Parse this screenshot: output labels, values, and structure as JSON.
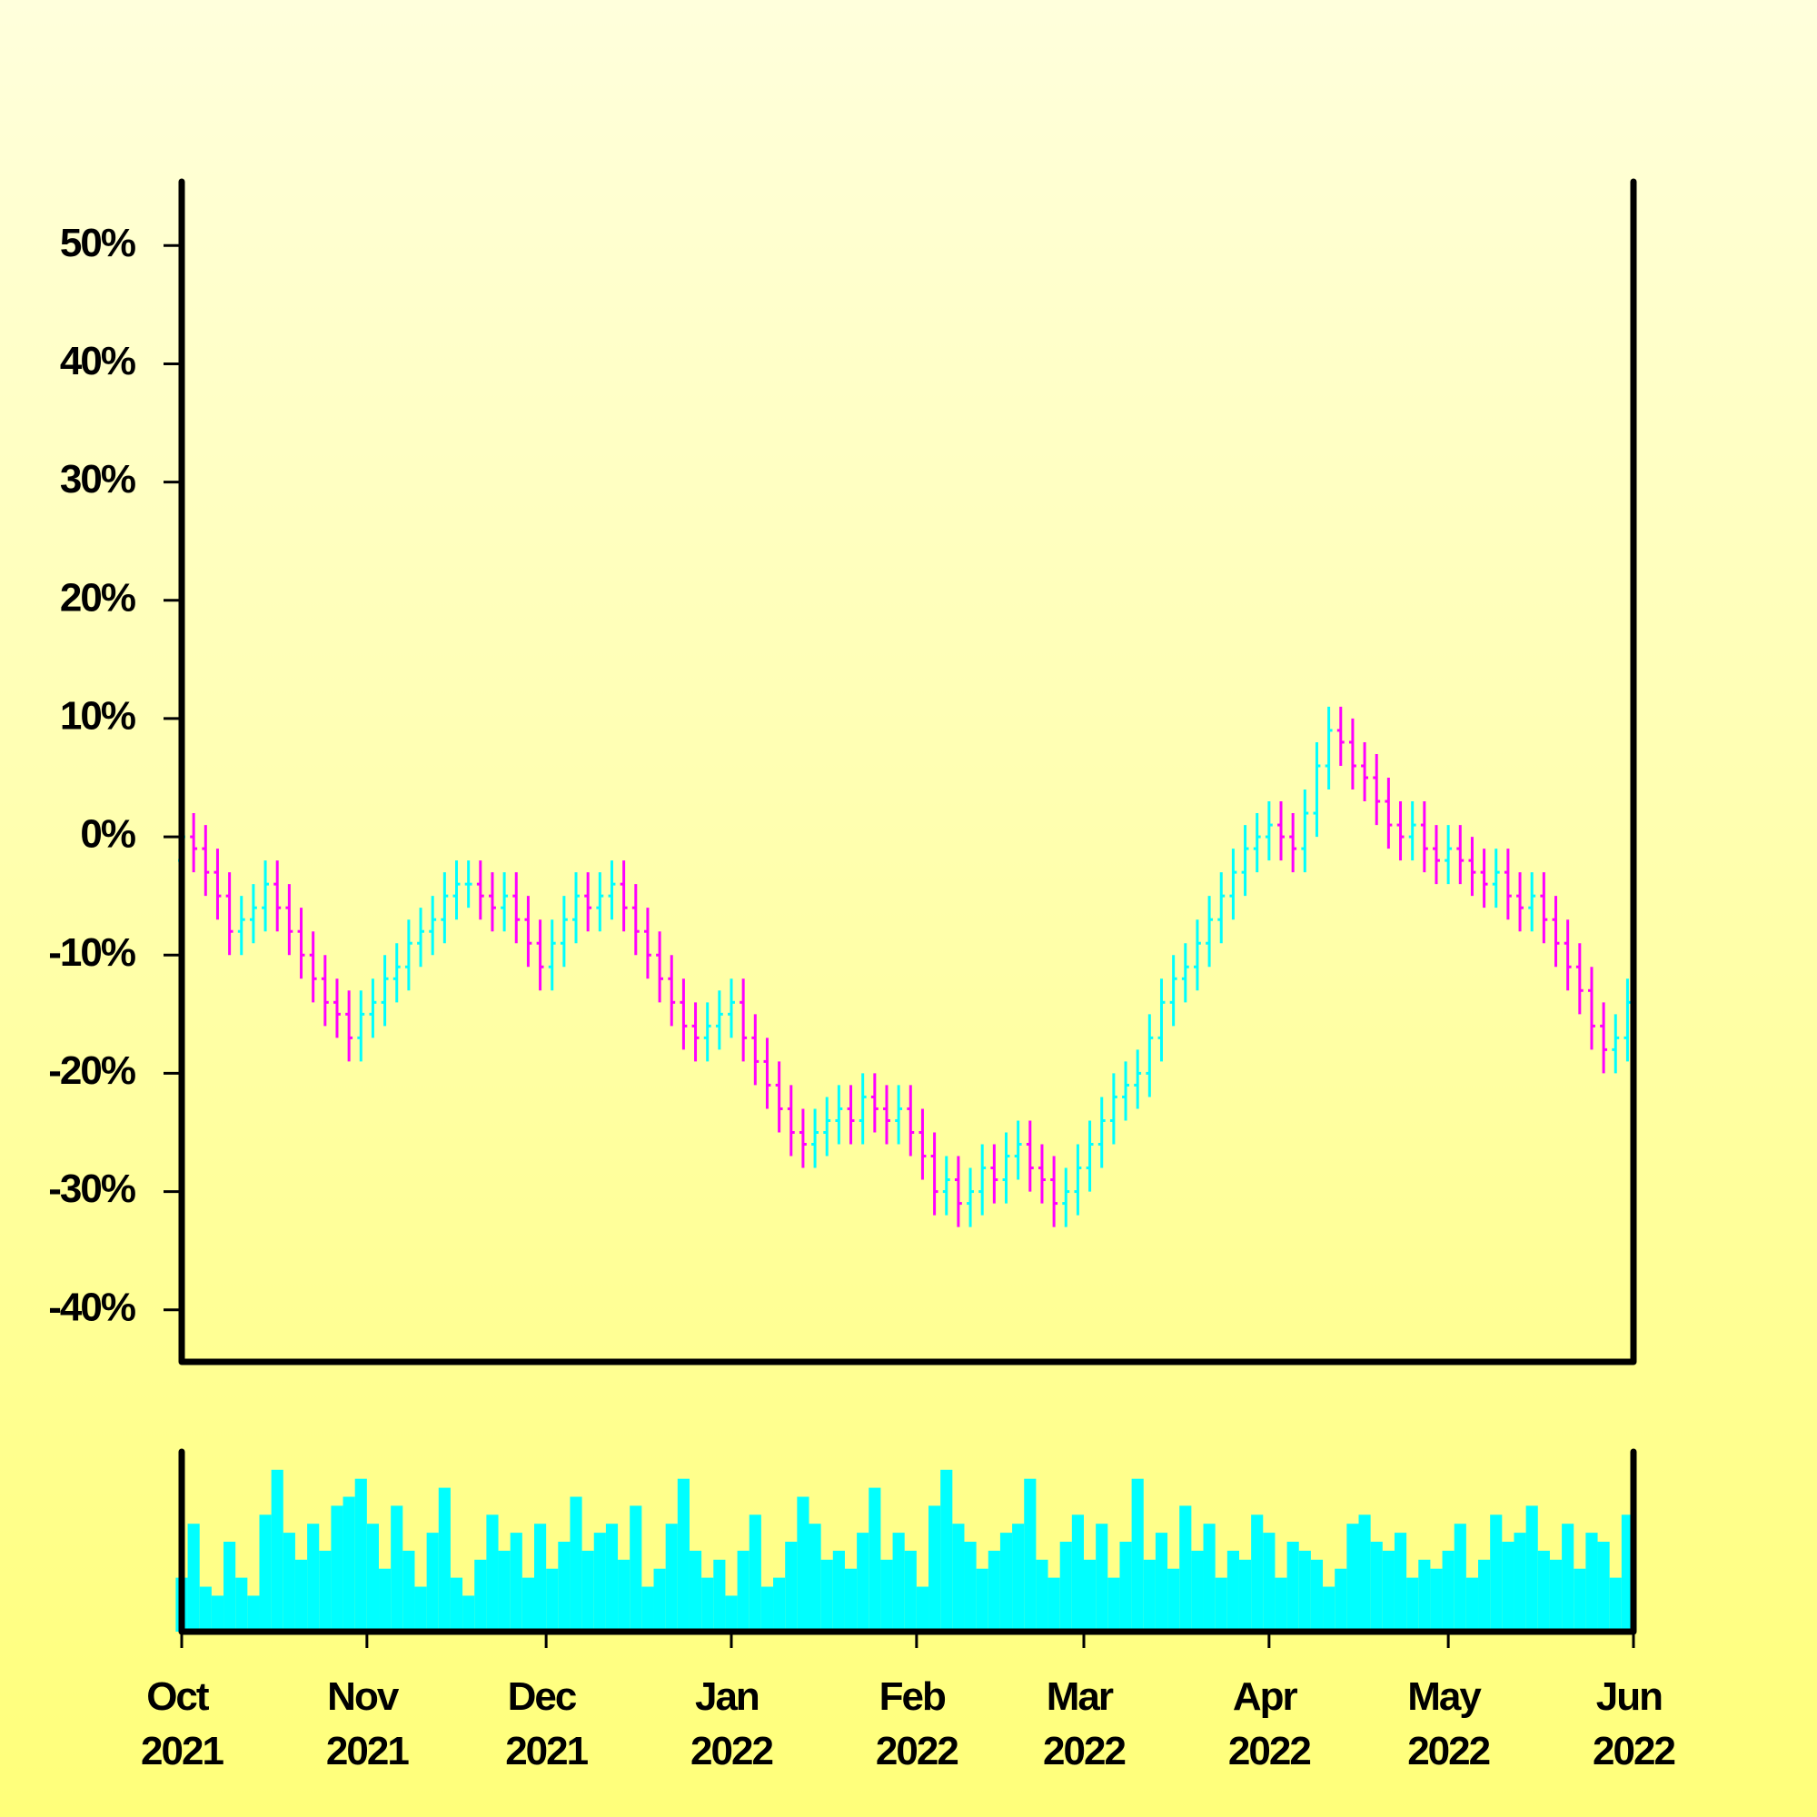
{
  "chart_data": {
    "type": "ohlc",
    "up_color": "#00ffff",
    "down_color": "#ff00ff",
    "x": [
      0,
      2,
      4,
      6,
      8,
      10,
      12,
      14,
      16,
      18,
      20,
      22,
      24,
      26,
      28,
      30,
      32,
      34,
      36,
      38,
      40,
      42,
      44,
      46,
      48,
      50,
      52,
      54,
      56,
      58,
      60,
      62,
      64,
      66,
      68,
      70,
      72,
      74,
      76,
      78,
      80,
      82,
      84,
      86,
      88,
      90,
      92,
      94,
      96,
      98,
      100,
      102,
      104,
      106,
      108,
      110,
      112,
      114,
      116,
      118,
      120,
      122,
      124,
      126,
      128,
      130,
      132,
      134,
      136,
      138,
      140,
      142,
      144,
      146,
      148,
      150,
      152,
      154,
      156,
      158,
      160,
      162,
      164,
      166,
      168,
      170,
      172,
      174,
      176,
      178,
      180,
      182,
      184,
      186,
      188,
      190,
      192,
      194,
      196,
      198,
      200,
      202,
      204,
      206,
      208,
      210,
      212,
      214,
      216,
      218,
      220,
      222,
      224,
      226,
      228,
      230,
      232,
      234,
      236,
      238,
      240,
      242
    ],
    "open": [
      -2,
      0,
      -1,
      -3,
      -5,
      -8,
      -7,
      -6,
      -4,
      -6,
      -8,
      -10,
      -12,
      -14,
      -15,
      -17,
      -15,
      -14,
      -12,
      -11,
      -9,
      -8,
      -7,
      -5,
      -4,
      -4,
      -5,
      -6,
      -5,
      -7,
      -9,
      -11,
      -9,
      -7,
      -5,
      -6,
      -5,
      -4,
      -6,
      -8,
      -10,
      -12,
      -14,
      -16,
      -17,
      -16,
      -15,
      -14,
      -17,
      -19,
      -21,
      -23,
      -25,
      -26,
      -25,
      -24,
      -23,
      -24,
      -22,
      -23,
      -24,
      -23,
      -25,
      -27,
      -30,
      -29,
      -31,
      -30,
      -28,
      -29,
      -27,
      -26,
      -28,
      -29,
      -31,
      -30,
      -28,
      -26,
      -24,
      -22,
      -21,
      -20,
      -17,
      -14,
      -12,
      -11,
      -9,
      -7,
      -5,
      -3,
      -1,
      0,
      1,
      0,
      -1,
      2,
      6,
      9,
      8,
      6,
      5,
      3,
      1,
      0,
      1,
      -1,
      -2,
      -1,
      -2,
      -3,
      -4,
      -3,
      -5,
      -6,
      -5,
      -7,
      -9,
      -11,
      -13,
      -16,
      -18,
      -17
    ],
    "high": [
      2,
      2,
      1,
      -1,
      -3,
      -5,
      -4,
      -2,
      -2,
      -4,
      -6,
      -8,
      -10,
      -12,
      -13,
      -13,
      -12,
      -10,
      -9,
      -7,
      -6,
      -5,
      -3,
      -2,
      -2,
      -2,
      -3,
      -3,
      -3,
      -5,
      -7,
      -7,
      -5,
      -3,
      -3,
      -3,
      -2,
      -2,
      -4,
      -6,
      -8,
      -10,
      -12,
      -14,
      -14,
      -13,
      -12,
      -12,
      -15,
      -17,
      -19,
      -21,
      -23,
      -23,
      -22,
      -21,
      -21,
      -20,
      -20,
      -21,
      -21,
      -21,
      -23,
      -25,
      -27,
      -27,
      -28,
      -26,
      -26,
      -25,
      -24,
      -24,
      -26,
      -27,
      -28,
      -26,
      -24,
      -22,
      -20,
      -19,
      -18,
      -15,
      -12,
      -10,
      -9,
      -7,
      -5,
      -3,
      -1,
      1,
      2,
      3,
      3,
      2,
      4,
      8,
      11,
      11,
      10,
      8,
      7,
      5,
      3,
      3,
      3,
      1,
      1,
      1,
      0,
      -1,
      -1,
      -1,
      -3,
      -3,
      -3,
      -5,
      -7,
      -9,
      -11,
      -14,
      -15,
      -12
    ],
    "low": [
      -4,
      -3,
      -5,
      -7,
      -10,
      -10,
      -9,
      -8,
      -8,
      -10,
      -12,
      -14,
      -16,
      -17,
      -19,
      -19,
      -17,
      -16,
      -14,
      -13,
      -11,
      -10,
      -9,
      -7,
      -6,
      -7,
      -8,
      -8,
      -9,
      -11,
      -13,
      -13,
      -11,
      -9,
      -8,
      -8,
      -7,
      -8,
      -10,
      -12,
      -14,
      -16,
      -18,
      -19,
      -19,
      -18,
      -17,
      -19,
      -21,
      -23,
      -25,
      -27,
      -28,
      -28,
      -27,
      -26,
      -26,
      -26,
      -25,
      -26,
      -26,
      -27,
      -29,
      -32,
      -32,
      -33,
      -33,
      -32,
      -31,
      -31,
      -29,
      -30,
      -31,
      -33,
      -33,
      -32,
      -30,
      -28,
      -26,
      -24,
      -23,
      -22,
      -19,
      -16,
      -14,
      -13,
      -11,
      -9,
      -7,
      -5,
      -3,
      -2,
      -2,
      -3,
      -3,
      0,
      4,
      6,
      4,
      3,
      1,
      -1,
      -2,
      -2,
      -3,
      -4,
      -4,
      -4,
      -5,
      -6,
      -6,
      -7,
      -8,
      -8,
      -9,
      -11,
      -13,
      -15,
      -18,
      -20,
      -20,
      -19
    ],
    "close": [
      0,
      -1,
      -3,
      -5,
      -8,
      -7,
      -6,
      -4,
      -6,
      -8,
      -10,
      -12,
      -14,
      -15,
      -17,
      -15,
      -14,
      -12,
      -11,
      -9,
      -8,
      -7,
      -5,
      -4,
      -4,
      -5,
      -6,
      -5,
      -7,
      -9,
      -11,
      -9,
      -7,
      -5,
      -6,
      -5,
      -4,
      -6,
      -8,
      -10,
      -12,
      -14,
      -16,
      -17,
      -16,
      -15,
      -14,
      -17,
      -19,
      -21,
      -23,
      -25,
      -26,
      -25,
      -24,
      -23,
      -24,
      -22,
      -23,
      -24,
      -23,
      -25,
      -27,
      -30,
      -29,
      -31,
      -30,
      -28,
      -29,
      -27,
      -26,
      -28,
      -29,
      -31,
      -30,
      -28,
      -26,
      -24,
      -22,
      -21,
      -20,
      -17,
      -14,
      -12,
      -11,
      -9,
      -7,
      -5,
      -3,
      -1,
      0,
      1,
      0,
      -1,
      2,
      6,
      9,
      8,
      6,
      5,
      3,
      1,
      0,
      1,
      -1,
      -2,
      -1,
      -2,
      -3,
      -4,
      -3,
      -5,
      -6,
      -5,
      -7,
      -9,
      -11,
      -13,
      -16,
      -18,
      -17,
      -14
    ],
    "volume": [
      30,
      60,
      25,
      20,
      50,
      30,
      20,
      65,
      90,
      55,
      40,
      60,
      45,
      70,
      75,
      85,
      60,
      35,
      70,
      45,
      25,
      55,
      80,
      30,
      20,
      40,
      65,
      45,
      55,
      30,
      60,
      35,
      50,
      75,
      45,
      55,
      60,
      40,
      70,
      25,
      35,
      60,
      85,
      45,
      30,
      40,
      20,
      45,
      65,
      25,
      30,
      50,
      75,
      60,
      40,
      45,
      35,
      55,
      80,
      40,
      55,
      45,
      25,
      70,
      90,
      60,
      50,
      35,
      45,
      55,
      60,
      85,
      40,
      30,
      50,
      65,
      40,
      60,
      30,
      50,
      85,
      40,
      55,
      35,
      70,
      45,
      60,
      30,
      45,
      40,
      65,
      55,
      30,
      50,
      45,
      40,
      25,
      35,
      60,
      65,
      50,
      45,
      55,
      30,
      40,
      35,
      45,
      60,
      30,
      40,
      65,
      50,
      55,
      70,
      45,
      40,
      60,
      35,
      55,
      50,
      30,
      65
    ],
    "volume_color": "#00ffff",
    "volume_ylim": [
      0,
      100
    ],
    "xlim": [
      0,
      243
    ],
    "ylim": [
      -44.4,
      55.4
    ],
    "xticks": [
      {
        "value": 0,
        "label": "Oct 2021"
      },
      {
        "value": 31,
        "label": "Nov 2021"
      },
      {
        "value": 61,
        "label": "Dec 2021"
      },
      {
        "value": 92,
        "label": "Jan 2022"
      },
      {
        "value": 123,
        "label": "Feb 2022"
      },
      {
        "value": 151,
        "label": "Mar 2022"
      },
      {
        "value": 182,
        "label": "Apr 2022"
      },
      {
        "value": 212,
        "label": "May 2022"
      },
      {
        "value": 243,
        "label": "Jun 2022"
      }
    ],
    "yticks": [
      {
        "value": -40,
        "label": "-40%"
      },
      {
        "value": -30,
        "label": "-30%"
      },
      {
        "value": -20,
        "label": "-20%"
      },
      {
        "value": -10,
        "label": "-10%"
      },
      {
        "value": 0,
        "label": "0%"
      },
      {
        "value": 10,
        "label": "10%"
      },
      {
        "value": 20,
        "label": "20%"
      },
      {
        "value": 30,
        "label": "30%"
      },
      {
        "value": 40,
        "label": "40%"
      },
      {
        "value": 50,
        "label": "50%"
      }
    ]
  }
}
